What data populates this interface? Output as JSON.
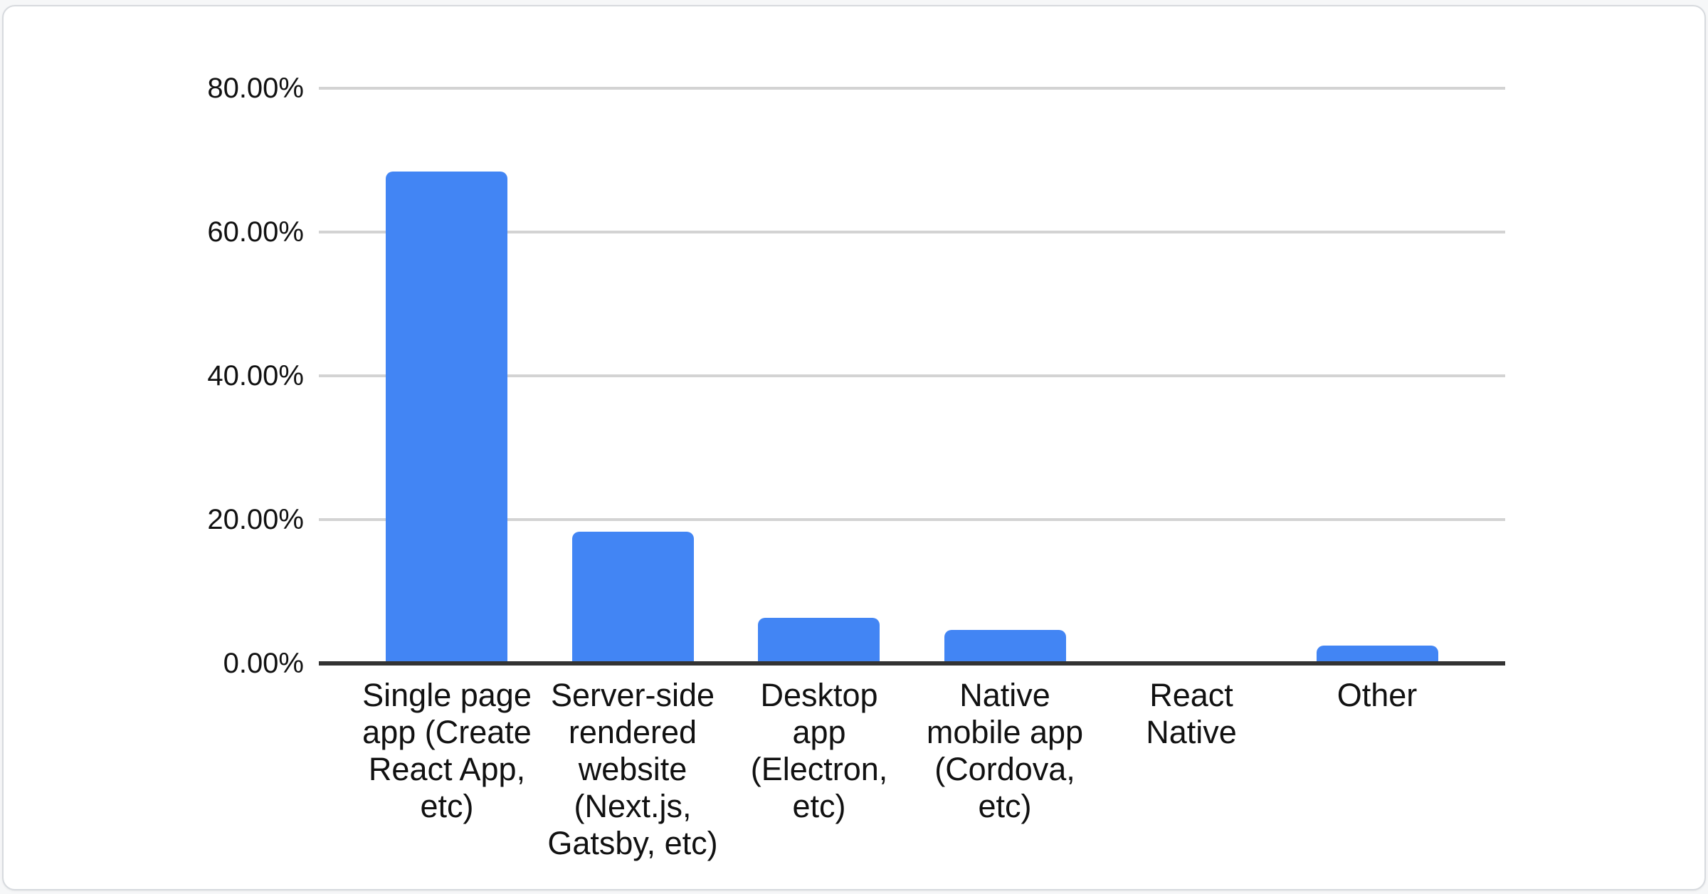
{
  "card": {
    "description": "white rounded survey-results card containing a single bar chart, no visible title or legend"
  },
  "chart_data": {
    "type": "bar",
    "title": "",
    "xlabel": "",
    "ylabel": "",
    "categories": [
      "Single page app (Create React App, etc)",
      "Server-side rendered website (Next.js, Gatsby, etc)",
      "Desktop app (Electron, etc)",
      "Native mobile app (Cordova, etc)",
      "React Native",
      "Other"
    ],
    "values": [
      68.4,
      18.3,
      6.3,
      4.7,
      0,
      2.5
    ],
    "value_unit": "%",
    "ylim": [
      0,
      80
    ],
    "y_ticks": [
      {
        "label": "80.00%",
        "value": 80
      },
      {
        "label": "60.00%",
        "value": 60
      },
      {
        "label": "40.00%",
        "value": 40
      },
      {
        "label": "20.00%",
        "value": 20
      },
      {
        "label": "0.00%",
        "value": 0
      }
    ],
    "grid": true,
    "legend_position": "none",
    "colors": {
      "bar": "#4285F4",
      "gridline": "#d3d3d3",
      "axis_line": "#333333",
      "text": "#111111",
      "card_background": "#ffffff",
      "card_border": "#d7dade",
      "page_background": "#f6f7f8"
    }
  }
}
